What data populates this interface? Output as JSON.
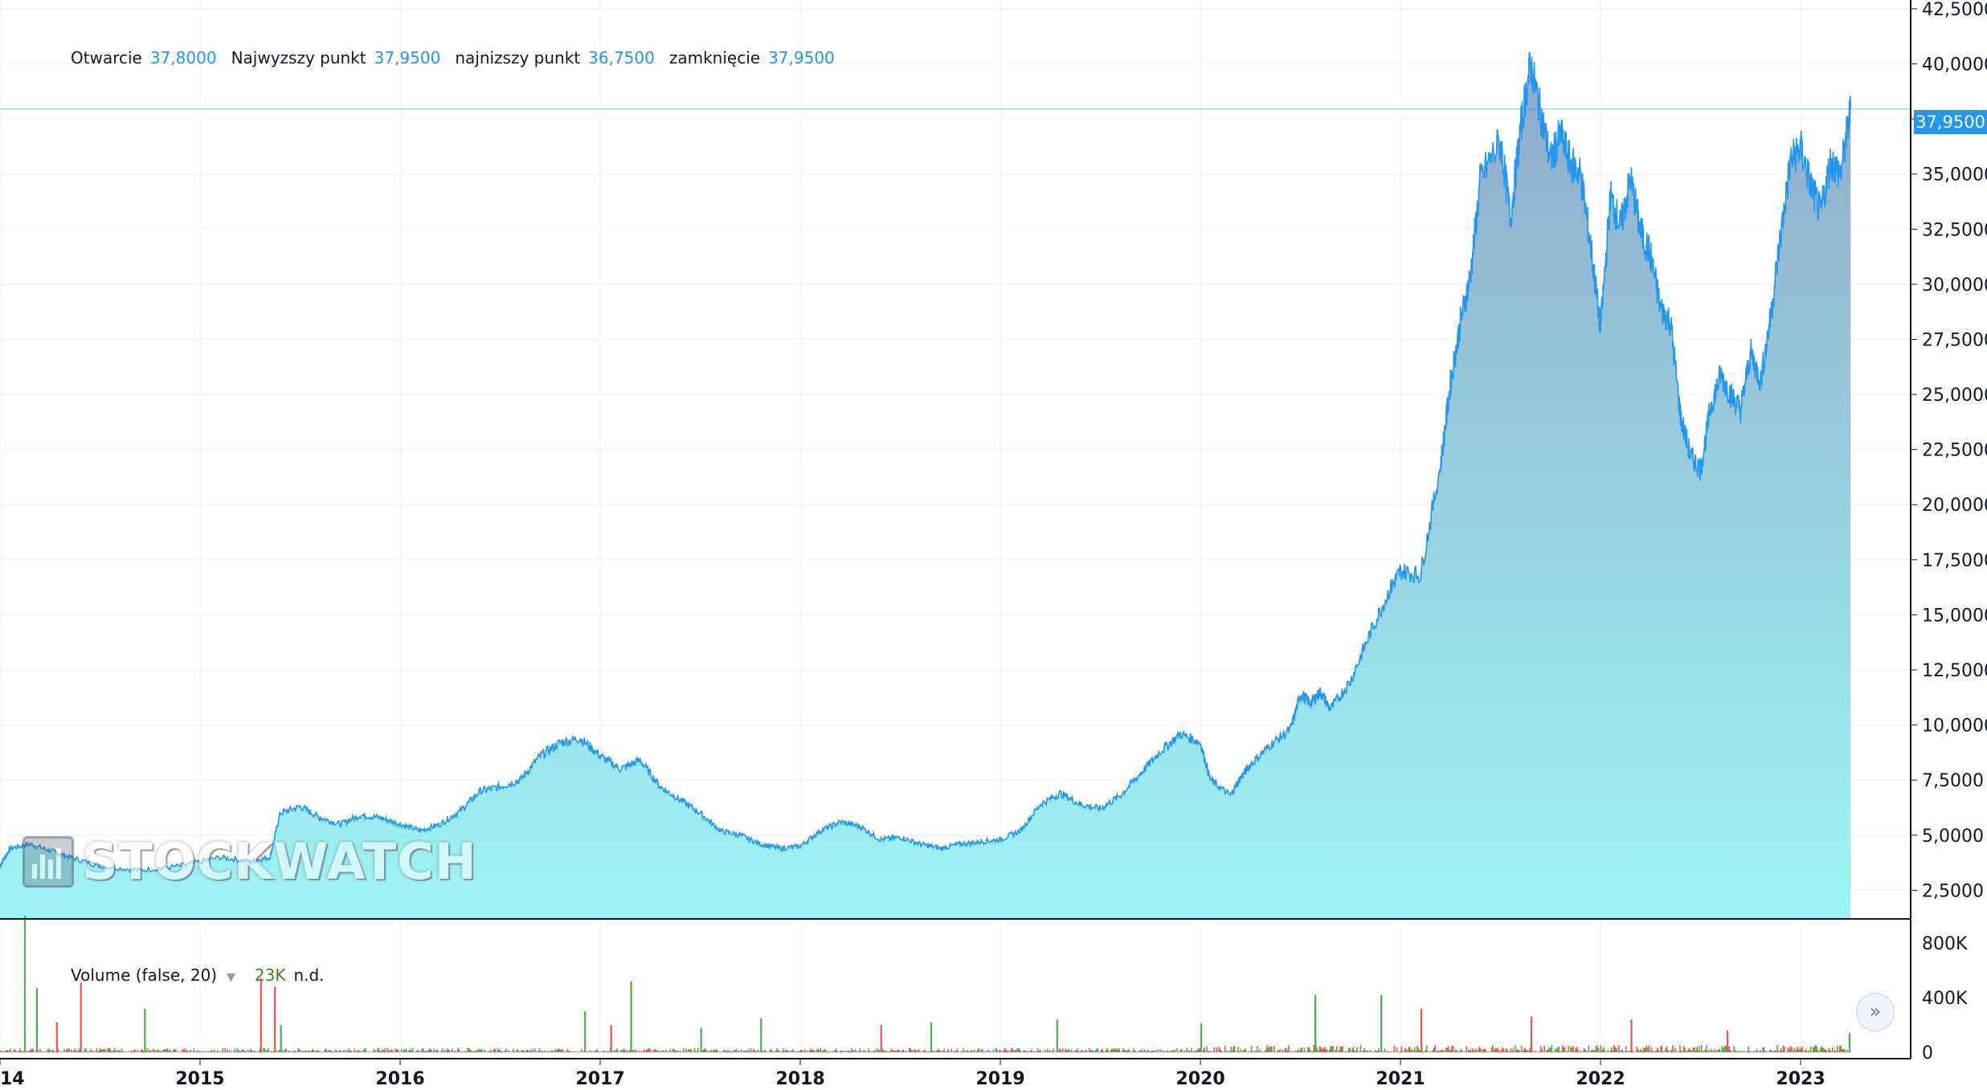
{
  "legend": {
    "open_label": "Otwarcie",
    "open_value": "37,8000",
    "high_label": "Najwyzszy punkt",
    "high_value": "37,9500",
    "low_label": "najnizszy punkt",
    "low_value": "36,7500",
    "close_label": "zamknięcie",
    "close_value": "37,9500"
  },
  "last_price_label": "37,9500",
  "watermark": "STOCKWATCH",
  "volume_legend": {
    "label": "Volume (false, 20)",
    "value": "23K",
    "extra": "n.d."
  },
  "colors": {
    "line": "#2196f3",
    "area_top": "#8fa9c9",
    "area_bottom": "#9ef5f5",
    "vol_up": "#4caf50",
    "vol_down": "#ef5350",
    "grid": "#f0f3fa"
  },
  "chart_data": [
    {
      "type": "area",
      "x_ticks": [
        "14",
        "2015",
        "2016",
        "2017",
        "2018",
        "2019",
        "2020",
        "2021",
        "2022",
        "2023"
      ],
      "y_ticks": [
        "2,5000",
        "5,0000",
        "7,5000",
        "10,0000",
        "12,5000",
        "15,0000",
        "17,5000",
        "20,0000",
        "22,5000",
        "25,0000",
        "27,5000",
        "30,0000",
        "32,5000",
        "35,0000",
        "37,5000",
        "40,0000",
        "42,5000"
      ],
      "ylim": [
        1.2,
        42.9
      ],
      "xlim": [
        2014.0,
        2023.55
      ],
      "last_value": 37.95,
      "series": [
        {
          "x": [
            2014.0,
            2014.05,
            2014.15,
            2014.25,
            2014.35,
            2014.5,
            2014.7,
            2014.9,
            2015.1,
            2015.25,
            2015.35,
            2015.4,
            2015.5,
            2015.6,
            2015.7,
            2015.8,
            2015.9,
            2016.0,
            2016.1,
            2016.2,
            2016.3,
            2016.4,
            2016.5,
            2016.6,
            2016.7,
            2016.8,
            2016.9,
            2017.0,
            2017.1,
            2017.2,
            2017.3,
            2017.4,
            2017.5,
            2017.6,
            2017.7,
            2017.8,
            2017.9,
            2018.0,
            2018.1,
            2018.2,
            2018.3,
            2018.4,
            2018.5,
            2018.6,
            2018.7,
            2018.8,
            2018.9,
            2019.0,
            2019.1,
            2019.2,
            2019.3,
            2019.4,
            2019.5,
            2019.6,
            2019.7,
            2019.8,
            2019.9,
            2020.0,
            2020.05,
            2020.15,
            2020.2,
            2020.25,
            2020.35,
            2020.45,
            2020.5,
            2020.55,
            2020.6,
            2020.65,
            2020.75,
            2020.85,
            2020.95,
            2021.0,
            2021.1,
            2021.2,
            2021.25,
            2021.3,
            2021.35,
            2021.4,
            2021.5,
            2021.55,
            2021.6,
            2021.65,
            2021.7,
            2021.75,
            2021.8,
            2021.85,
            2021.9,
            2021.95,
            2022.0,
            2022.05,
            2022.1,
            2022.15,
            2022.2,
            2022.25,
            2022.3,
            2022.35,
            2022.4,
            2022.45,
            2022.5,
            2022.55,
            2022.6,
            2022.65,
            2022.7,
            2022.75,
            2022.8,
            2022.85,
            2022.9,
            2022.95,
            2023.0,
            2023.05,
            2023.1,
            2023.15,
            2023.2,
            2023.25
          ],
          "y": [
            3.6,
            4.4,
            4.6,
            4.3,
            4.0,
            3.6,
            3.4,
            3.6,
            4.0,
            3.8,
            4.0,
            6.0,
            6.3,
            5.8,
            5.5,
            5.9,
            5.8,
            5.5,
            5.2,
            5.5,
            6.1,
            7.0,
            7.2,
            7.5,
            8.6,
            9.2,
            9.4,
            8.6,
            8.0,
            8.4,
            7.2,
            6.6,
            6.0,
            5.2,
            5.0,
            4.6,
            4.4,
            4.5,
            5.2,
            5.6,
            5.4,
            4.8,
            4.9,
            4.6,
            4.4,
            4.6,
            4.7,
            4.8,
            5.2,
            6.4,
            6.9,
            6.4,
            6.2,
            6.8,
            7.8,
            8.8,
            9.6,
            9.2,
            7.5,
            6.8,
            7.6,
            8.2,
            9.1,
            9.8,
            11.4,
            11.0,
            11.5,
            10.7,
            12.0,
            14.2,
            16.2,
            17.0,
            16.8,
            21.8,
            25.5,
            28.3,
            30.4,
            34.8,
            36.5,
            33.0,
            37.0,
            40.0,
            37.8,
            35.6,
            36.8,
            35.5,
            35.0,
            31.8,
            28.0,
            34.0,
            32.6,
            34.8,
            32.4,
            31.3,
            28.9,
            28.3,
            24.0,
            22.2,
            21.6,
            24.4,
            25.9,
            25.0,
            24.3,
            26.9,
            25.6,
            28.5,
            32.2,
            35.6,
            36.2,
            34.5,
            33.2,
            35.6,
            35.0,
            37.95
          ]
        }
      ]
    },
    {
      "type": "bar",
      "title": "Volume (false, 20)",
      "y_ticks": [
        "0",
        "400K",
        "800K"
      ],
      "ylim": [
        0,
        1000000
      ],
      "spikes": [
        {
          "x": 2014.12,
          "v": 1000000,
          "dir": "up"
        },
        {
          "x": 2014.18,
          "v": 470000,
          "dir": "up"
        },
        {
          "x": 2014.28,
          "v": 220000,
          "dir": "down"
        },
        {
          "x": 2014.4,
          "v": 510000,
          "dir": "down"
        },
        {
          "x": 2014.72,
          "v": 320000,
          "dir": "up"
        },
        {
          "x": 2015.3,
          "v": 540000,
          "dir": "down"
        },
        {
          "x": 2015.37,
          "v": 480000,
          "dir": "down"
        },
        {
          "x": 2015.4,
          "v": 200000,
          "dir": "up"
        },
        {
          "x": 2016.92,
          "v": 300000,
          "dir": "up"
        },
        {
          "x": 2017.15,
          "v": 520000,
          "dir": "up"
        },
        {
          "x": 2017.05,
          "v": 200000,
          "dir": "down"
        },
        {
          "x": 2017.5,
          "v": 180000,
          "dir": "up"
        },
        {
          "x": 2017.8,
          "v": 250000,
          "dir": "up"
        },
        {
          "x": 2018.4,
          "v": 200000,
          "dir": "down"
        },
        {
          "x": 2018.65,
          "v": 220000,
          "dir": "up"
        },
        {
          "x": 2019.28,
          "v": 240000,
          "dir": "up"
        },
        {
          "x": 2020.0,
          "v": 210000,
          "dir": "up"
        },
        {
          "x": 2020.57,
          "v": 420000,
          "dir": "up"
        },
        {
          "x": 2020.9,
          "v": 420000,
          "dir": "up"
        },
        {
          "x": 2021.1,
          "v": 320000,
          "dir": "down"
        },
        {
          "x": 2021.65,
          "v": 260000,
          "dir": "down"
        },
        {
          "x": 2022.15,
          "v": 240000,
          "dir": "down"
        },
        {
          "x": 2022.63,
          "v": 160000,
          "dir": "down"
        },
        {
          "x": 2023.24,
          "v": 140000,
          "dir": "up"
        }
      ]
    }
  ]
}
